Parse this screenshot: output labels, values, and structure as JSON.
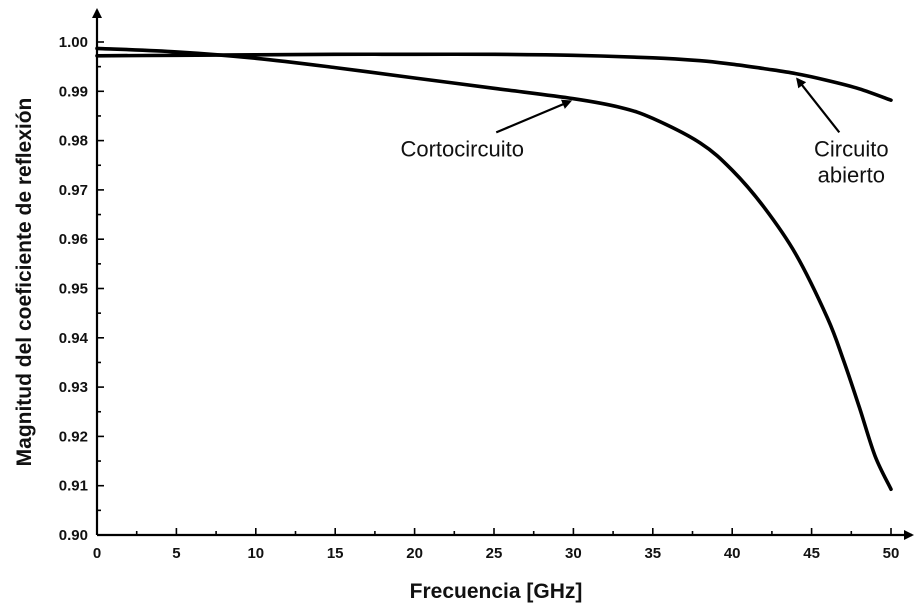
{
  "chart_data": {
    "type": "line",
    "xlabel": "Frecuencia [GHz]",
    "ylabel": "Magnitud del coeficiente de reflexión",
    "xlim": [
      0,
      52
    ],
    "ylim": [
      0.9,
      1.005
    ],
    "x_ticks": [
      "0",
      "5",
      "10",
      "15",
      "20",
      "25",
      "30",
      "35",
      "40",
      "45",
      "50"
    ],
    "y_ticks": [
      "0.90",
      "0.91",
      "0.92",
      "0.93",
      "0.94",
      "0.95",
      "0.96",
      "0.97",
      "0.98",
      "0.99",
      "1.00"
    ],
    "grid": false,
    "series": [
      {
        "name": "Cortocircuito",
        "x": [
          0,
          5,
          10,
          15,
          20,
          25,
          30,
          33,
          35,
          38,
          40,
          42,
          44,
          46,
          47,
          48,
          49,
          50
        ],
        "y": [
          0.9987,
          0.998,
          0.9967,
          0.9948,
          0.9927,
          0.9906,
          0.9885,
          0.9867,
          0.9845,
          0.9795,
          0.974,
          0.9665,
          0.957,
          0.944,
          0.9355,
          0.926,
          0.916,
          0.9093
        ]
      },
      {
        "name": "Circuito abierto",
        "x": [
          0,
          5,
          10,
          15,
          20,
          25,
          30,
          35,
          38,
          40,
          42,
          44,
          46,
          48,
          50
        ],
        "y": [
          0.9972,
          0.9973,
          0.9974,
          0.9975,
          0.9975,
          0.9975,
          0.9973,
          0.9968,
          0.9962,
          0.9955,
          0.9946,
          0.9936,
          0.9922,
          0.9905,
          0.9882
        ]
      }
    ],
    "annotations": [
      {
        "text_lines": [
          "Cortocircuito"
        ],
        "target": [
          29.8,
          0.9888
        ],
        "text_anchor": [
          23,
          0.9768
        ]
      },
      {
        "text_lines": [
          "Circuito",
          "abierto"
        ],
        "target": [
          44.1,
          0.9933
        ],
        "text_anchor": [
          47.5,
          0.9768
        ]
      }
    ]
  }
}
